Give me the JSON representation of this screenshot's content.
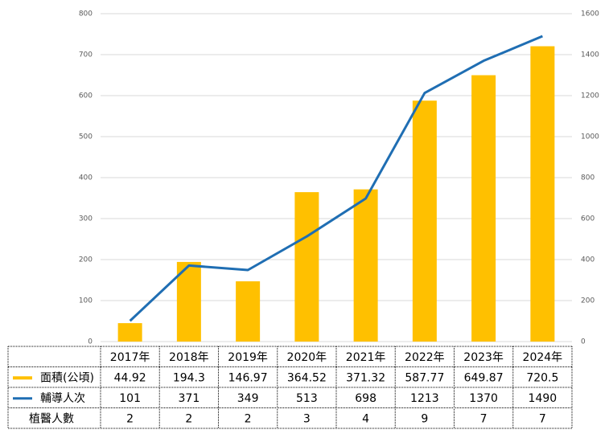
{
  "chart_data": {
    "type": "bar-line",
    "categories": [
      "2017年",
      "2018年",
      "2019年",
      "2020年",
      "2021年",
      "2022年",
      "2023年",
      "2024年"
    ],
    "series": [
      {
        "name": "面積(公頃)",
        "type": "bar",
        "color": "#ffc000",
        "values": [
          44.92,
          194.3,
          146.97,
          364.52,
          371.32,
          587.77,
          649.87,
          720.5
        ]
      },
      {
        "name": "輔導人次",
        "type": "line",
        "axis": "y2",
        "color": "#1f6eb3",
        "values": [
          101,
          371,
          349,
          513,
          698,
          1213,
          1370,
          1490
        ]
      },
      {
        "name": "植醫人數",
        "type": "table",
        "values": [
          2,
          2,
          2,
          3,
          4,
          9,
          7,
          7
        ]
      }
    ],
    "ylim": [
      0,
      800
    ],
    "yticks": [
      0,
      100,
      200,
      300,
      400,
      500,
      600,
      700,
      800
    ],
    "y2lim": [
      0,
      1600
    ],
    "y2ticks": [
      0,
      200,
      400,
      600,
      800,
      1000,
      1200,
      1400,
      1600
    ],
    "grid": true
  }
}
